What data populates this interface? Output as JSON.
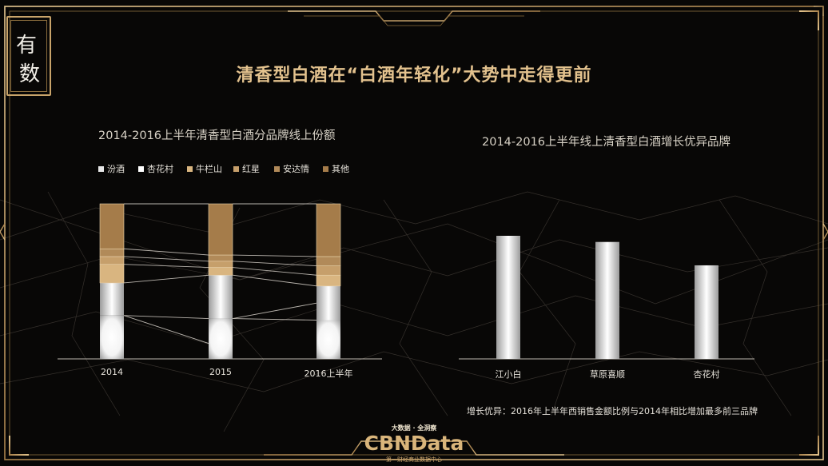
{
  "header": {
    "logo_char_1": "有",
    "logo_char_2": "数",
    "title": "清香型白酒在“白酒年轻化”大势中走得更前"
  },
  "chart_data": [
    {
      "type": "bar",
      "stacked": true,
      "normalized": true,
      "title": "2014-2016上半年清香型白酒分品牌线上份额",
      "categories": [
        "2014",
        "2015",
        "2016上半年"
      ],
      "series": [
        {
          "name": "汾酒",
          "values": [
            0.28,
            0.26,
            0.25
          ]
        },
        {
          "name": "杏花村",
          "values": [
            0.21,
            0.28,
            0.22
          ]
        },
        {
          "name": "牛栏山",
          "values": [
            0.12,
            0.05,
            0.07
          ]
        },
        {
          "name": "红星",
          "values": [
            0.05,
            0.04,
            0.06
          ]
        },
        {
          "name": "安达情",
          "values": [
            0.05,
            0.04,
            0.06
          ]
        },
        {
          "name": "其他",
          "values": [
            0.29,
            0.33,
            0.34
          ]
        }
      ],
      "legend_position": "top-left",
      "colors": [
        "#ffffff",
        "#ffffff",
        "#d9b580",
        "#c69f6b",
        "#b18a59",
        "#a57c4a"
      ],
      "grid": false
    },
    {
      "type": "bar",
      "title": "2014-2016上半年线上清香型白酒增长优异品牌",
      "categories": [
        "江小白",
        "草原喜顺",
        "杏花村"
      ],
      "values": [
        100,
        95,
        76
      ],
      "grid": false
    }
  ],
  "footnote": "增长优异：2016年上半年西销售金额比例与2014年相比增加最多前三品牌",
  "brand": {
    "slogan": "大数据 · 全洞察",
    "name": "CBNData",
    "sub": "第一财经商业数据中心"
  },
  "colors": {
    "accent_gold": "#d9b57b",
    "frame_gold": "#c9a46a",
    "background": "#080706"
  }
}
